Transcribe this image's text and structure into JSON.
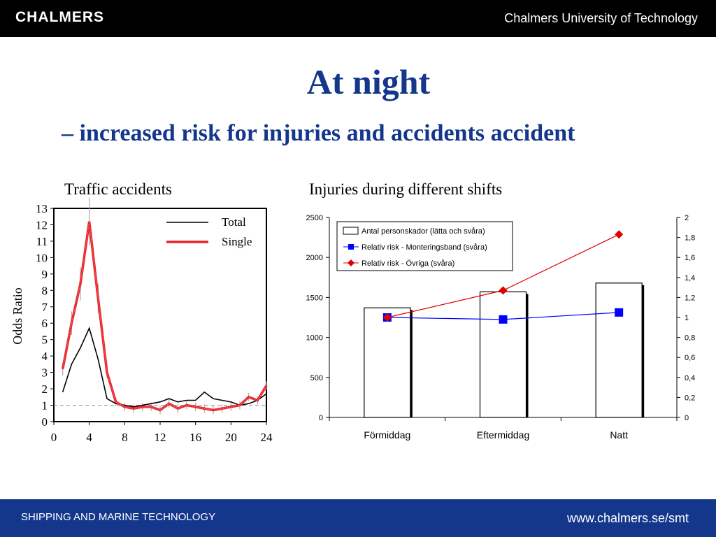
{
  "header": {
    "logo_text": "CHALMERS",
    "university": "Chalmers University of Technology"
  },
  "slide": {
    "title": "At night",
    "subtitle": "– increased risk for injuries and accidents accident"
  },
  "footer": {
    "department": "SHIPPING AND MARINE TECHNOLOGY",
    "url": "www.chalmers.se/smt"
  },
  "colors": {
    "brand_blue": "#14378c",
    "series_red": "#e8242b",
    "series_blue": "#0000ff",
    "header_black": "#000000"
  },
  "chart_data": [
    {
      "type": "line",
      "title": "Traffic accidents",
      "xlabel": "",
      "ylabel": "Odds Ratio",
      "xlim": [
        0,
        24
      ],
      "ylim": [
        0,
        13
      ],
      "xticks": [
        0,
        4,
        8,
        12,
        16,
        20,
        24
      ],
      "yticks": [
        0,
        1,
        2,
        3,
        4,
        5,
        6,
        7,
        8,
        9,
        10,
        11,
        12,
        13
      ],
      "reference_line": 1,
      "legend": "top-right",
      "grid": false,
      "series": [
        {
          "name": "Total",
          "x": [
            1,
            2,
            3,
            4,
            5,
            6,
            7,
            8,
            9,
            10,
            11,
            12,
            13,
            14,
            15,
            16,
            17,
            18,
            19,
            20,
            21,
            22,
            23,
            24
          ],
          "values": [
            1.8,
            3.5,
            4.5,
            5.7,
            3.8,
            1.4,
            1.1,
            1.0,
            0.9,
            1.0,
            1.1,
            1.2,
            1.4,
            1.2,
            1.3,
            1.3,
            1.8,
            1.4,
            1.3,
            1.2,
            1.0,
            1.1,
            1.3,
            1.7
          ]
        },
        {
          "name": "Single",
          "x": [
            1,
            2,
            3,
            4,
            5,
            6,
            7,
            8,
            9,
            10,
            11,
            12,
            13,
            14,
            15,
            16,
            17,
            18,
            19,
            20,
            21,
            22,
            23,
            24
          ],
          "values": [
            3.2,
            6.0,
            8.4,
            12.2,
            7.5,
            3.0,
            1.2,
            0.9,
            0.8,
            0.9,
            0.9,
            0.7,
            1.1,
            0.8,
            1.0,
            0.9,
            0.8,
            0.7,
            0.8,
            0.9,
            1.0,
            1.5,
            1.3,
            2.2
          ]
        }
      ]
    },
    {
      "type": "bar",
      "title": "Injuries during different shifts",
      "categories": [
        "Förmiddag",
        "Eftermiddag",
        "Natt"
      ],
      "ylim": [
        0,
        2500
      ],
      "yticks": [
        0,
        500,
        1000,
        1500,
        2000,
        2500
      ],
      "y2lim": [
        0,
        2
      ],
      "y2ticks": [
        "0",
        "0,2",
        "0,4",
        "0,6",
        "0,8",
        "1",
        "1,2",
        "1,4",
        "1,6",
        "1,8",
        "2"
      ],
      "legend": "top-left",
      "grid": false,
      "series": [
        {
          "name": "Antal personskador (lätta och svåra)",
          "type": "bar",
          "axis": "left",
          "values": [
            1370,
            1570,
            1680
          ]
        },
        {
          "name": "Relativ risk - Monteringsband (svåra)",
          "type": "line",
          "axis": "right",
          "values": [
            1.0,
            0.98,
            1.05
          ]
        },
        {
          "name": "Relativ risk - Övriga (svåra)",
          "type": "line",
          "axis": "right",
          "values": [
            1.0,
            1.27,
            1.83
          ]
        }
      ]
    }
  ]
}
